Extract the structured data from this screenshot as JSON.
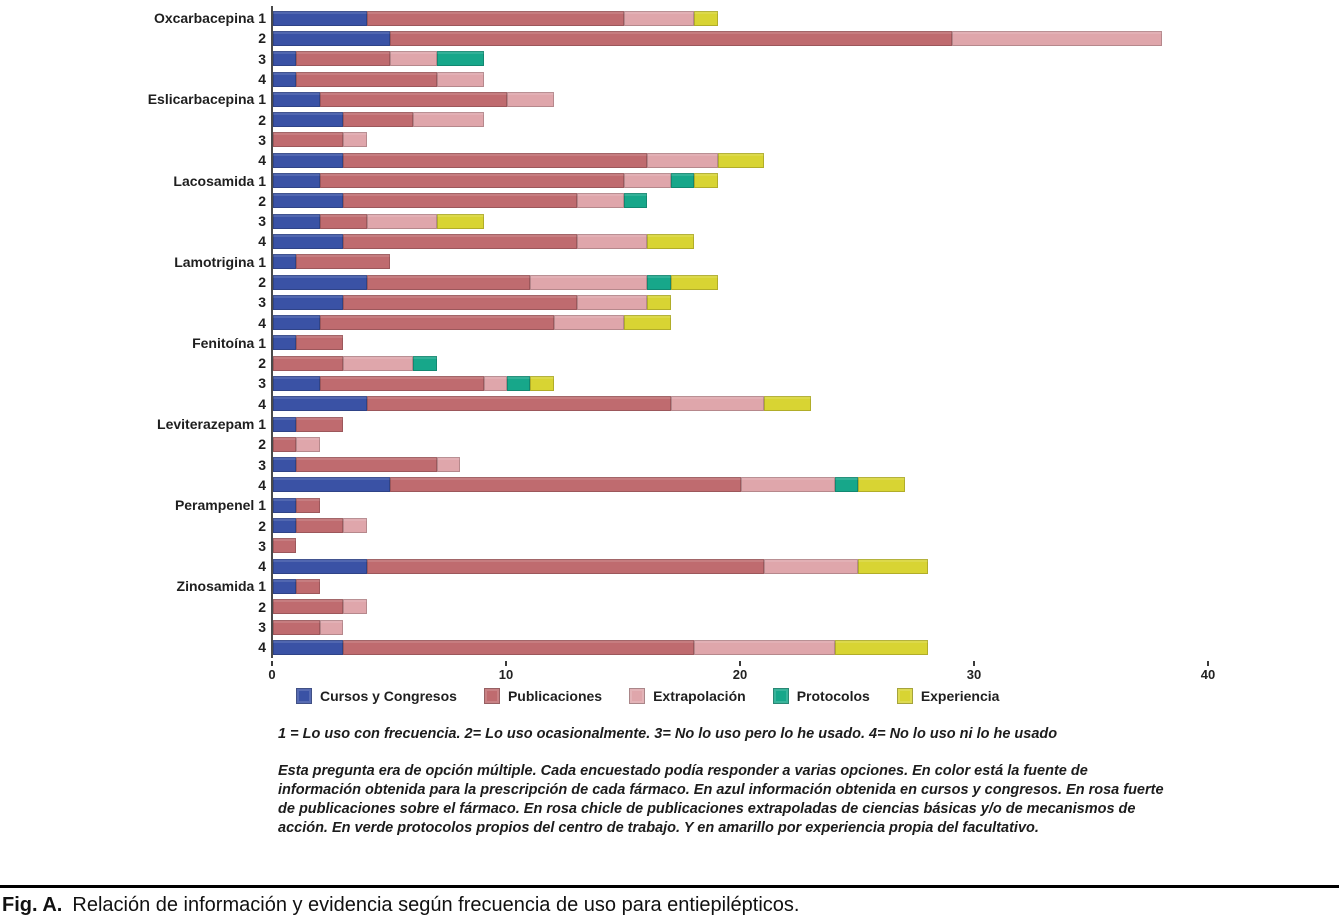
{
  "figure": {
    "caption_label": "Fig. A.",
    "caption_text": "Relación de información y evidencia según frecuencia de uso para entiepilépticos.",
    "note_scale": "1 = Lo uso con frecuencia. 2= Lo uso ocasionalmente. 3= No lo uso pero lo he usado. 4= No lo uso ni lo he usado",
    "note_method": "Esta pregunta era de opción múltiple. Cada encuestado podía responder a varias opciones. En color está la fuente de información obtenida para la prescripción de cada fármaco. En azul información obtenida en cursos y congresos. En rosa fuerte de publicaciones sobre el fármaco. En rosa chicle de publicaciones extrapoladas de ciencias básicas y/o de mecanismos de acción. En verde protocolos propios del centro de trabajo. Y en amarillo por experiencia propia del facultativo."
  },
  "chart_data": {
    "type": "bar",
    "orientation": "horizontal",
    "stacked": true,
    "xlim": [
      0,
      40
    ],
    "x_ticks": [
      0,
      10,
      20,
      30,
      40
    ],
    "grid": false,
    "legend_position": "bottom",
    "series_names": [
      "Cursos y Congresos",
      "Publicaciones",
      "Extrapolación",
      "Protocolos",
      "Experiencia"
    ],
    "series_colors": [
      "#3A52A5",
      "#BF6B6F",
      "#DFA6AB",
      "#17A78A",
      "#D8D433"
    ],
    "row_scale_meaning": {
      "1": "Lo uso con frecuencia",
      "2": "Lo uso ocasionalmente",
      "3": "No lo uso pero lo he usado",
      "4": "No lo uso ni lo he usado"
    },
    "groups": [
      {
        "drug": "Oxcarbacepina",
        "rows": [
          {
            "label": "1",
            "values": [
              4,
              11,
              3,
              0,
              1
            ]
          },
          {
            "label": "2",
            "values": [
              5,
              24,
              9,
              0,
              0
            ]
          },
          {
            "label": "3",
            "values": [
              1,
              4,
              2,
              2,
              0
            ]
          },
          {
            "label": "4",
            "values": [
              1,
              6,
              2,
              0,
              0
            ]
          }
        ]
      },
      {
        "drug": "Eslicarbacepina",
        "rows": [
          {
            "label": "1",
            "values": [
              2,
              8,
              2,
              0,
              0
            ]
          },
          {
            "label": "2",
            "values": [
              3,
              3,
              3,
              0,
              0
            ]
          },
          {
            "label": "3",
            "values": [
              0,
              3,
              1,
              0,
              0
            ]
          },
          {
            "label": "4",
            "values": [
              3,
              13,
              3,
              0,
              2
            ]
          }
        ]
      },
      {
        "drug": "Lacosamida",
        "rows": [
          {
            "label": "1",
            "values": [
              2,
              13,
              2,
              1,
              1
            ]
          },
          {
            "label": "2",
            "values": [
              3,
              10,
              2,
              1,
              0
            ]
          },
          {
            "label": "3",
            "values": [
              2,
              2,
              3,
              0,
              2
            ]
          },
          {
            "label": "4",
            "values": [
              3,
              10,
              3,
              0,
              2
            ]
          }
        ]
      },
      {
        "drug": "Lamotrigina",
        "rows": [
          {
            "label": "1",
            "values": [
              1,
              4,
              0,
              0,
              0
            ]
          },
          {
            "label": "2",
            "values": [
              4,
              7,
              5,
              1,
              2
            ]
          },
          {
            "label": "3",
            "values": [
              3,
              10,
              3,
              0,
              1
            ]
          },
          {
            "label": "4",
            "values": [
              2,
              10,
              3,
              0,
              2
            ]
          }
        ]
      },
      {
        "drug": "Fenitoína",
        "rows": [
          {
            "label": "1",
            "values": [
              1,
              2,
              0,
              0,
              0
            ]
          },
          {
            "label": "2",
            "values": [
              0,
              3,
              3,
              1,
              0
            ]
          },
          {
            "label": "3",
            "values": [
              2,
              7,
              1,
              1,
              1
            ]
          },
          {
            "label": "4",
            "values": [
              4,
              13,
              4,
              0,
              2
            ]
          }
        ]
      },
      {
        "drug": "Leviterazepam",
        "rows": [
          {
            "label": "1",
            "values": [
              1,
              2,
              0,
              0,
              0
            ]
          },
          {
            "label": "2",
            "values": [
              0,
              1,
              1,
              0,
              0
            ]
          },
          {
            "label": "3",
            "values": [
              1,
              6,
              1,
              0,
              0
            ]
          },
          {
            "label": "4",
            "values": [
              5,
              15,
              4,
              1,
              2
            ]
          }
        ]
      },
      {
        "drug": "Perampenel",
        "rows": [
          {
            "label": "1",
            "values": [
              1,
              1,
              0,
              0,
              0
            ]
          },
          {
            "label": "2",
            "values": [
              1,
              2,
              1,
              0,
              0
            ]
          },
          {
            "label": "3",
            "values": [
              0,
              1,
              0,
              0,
              0
            ]
          },
          {
            "label": "4",
            "values": [
              4,
              17,
              4,
              0,
              3
            ]
          }
        ]
      },
      {
        "drug": "Zinosamida",
        "rows": [
          {
            "label": "1",
            "values": [
              1,
              1,
              0,
              0,
              0
            ]
          },
          {
            "label": "2",
            "values": [
              0,
              3,
              1,
              0,
              0
            ]
          },
          {
            "label": "3",
            "values": [
              0,
              2,
              1,
              0,
              0
            ]
          },
          {
            "label": "4",
            "values": [
              3,
              15,
              6,
              0,
              4
            ]
          }
        ]
      }
    ]
  }
}
